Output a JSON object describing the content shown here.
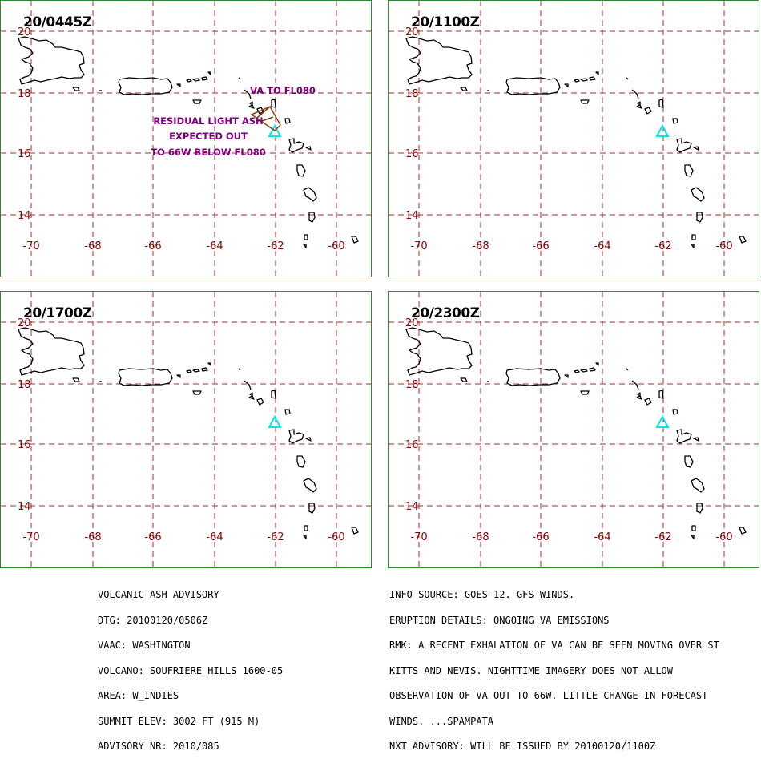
{
  "panels": [
    {
      "title": "20/0445Z",
      "annotations": [
        "VA TO FL080",
        "RESIDUAL LIGHT ASH",
        "EXPECTED OUT",
        "TO 66W BELOW FL080"
      ]
    },
    {
      "title": "20/1100Z",
      "annotations": []
    },
    {
      "title": "20/1700Z",
      "annotations": []
    },
    {
      "title": "20/2300Z",
      "annotations": []
    }
  ],
  "axes": {
    "lat_labels": [
      "20",
      "18",
      "16",
      "14"
    ],
    "lon_labels": [
      "-70",
      "-68",
      "-66",
      "-64",
      "-62",
      "-60"
    ]
  },
  "colors": {
    "grid": "#a52a2a",
    "labels": "#8b0000",
    "volcano": "#00e5ee",
    "ash_polygon": "#8b4513",
    "annotation": "#800080",
    "frame": "#2e8b2e"
  },
  "volcano_marker": "triangle-icon",
  "advisory_left": [
    "VOLCANIC ASH ADVISORY",
    "DTG: 20100120/0506Z",
    "VAAC: WASHINGTON",
    "VOLCANO: SOUFRIERE HILLS 1600-05",
    "AREA: W_INDIES",
    "SUMMIT ELEV: 3002 FT (915 M)",
    "ADVISORY NR: 2010/085"
  ],
  "advisory_right": [
    "INFO SOURCE: GOES-12. GFS WINDS.",
    "ERUPTION DETAILS: ONGOING VA EMISSIONS",
    "RMK: A RECENT EXHALATION OF VA CAN BE SEEN MOVING OVER ST",
    "KITTS AND NEVIS. NIGHTTIME IMAGERY DOES NOT ALLOW",
    "OBSERVATION OF VA OUT TO 66W. LITTLE CHANGE IN FORECAST",
    "WINDS. ...SPAMPATA",
    "NXT ADVISORY: WILL BE ISSUED BY 20100120/1100Z"
  ]
}
